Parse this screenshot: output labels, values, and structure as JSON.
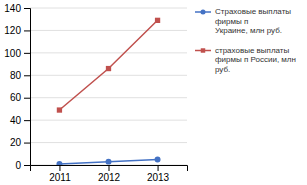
{
  "chart_data": {
    "type": "line",
    "x": [
      2011,
      2012,
      2013
    ],
    "xlim": [
      2010.4,
      2013.6
    ],
    "xticks": [
      2011,
      2012,
      2013
    ],
    "ylim": [
      0,
      140
    ],
    "yticks": [
      0,
      20,
      40,
      60,
      80,
      100,
      120,
      140
    ],
    "grid": true,
    "legend": "right",
    "series": [
      {
        "name": "Страховые выплаты\nфирмы п\nУкраине, млн руб.",
        "color": "#4472C4",
        "marker": "circle",
        "values": [
          1,
          3,
          5
        ]
      },
      {
        "name": "страховые выплаты\nфирмы п Росcии, млн\nруб.",
        "color": "#C0504D",
        "marker": "square",
        "values": [
          49,
          86,
          129
        ]
      }
    ]
  }
}
